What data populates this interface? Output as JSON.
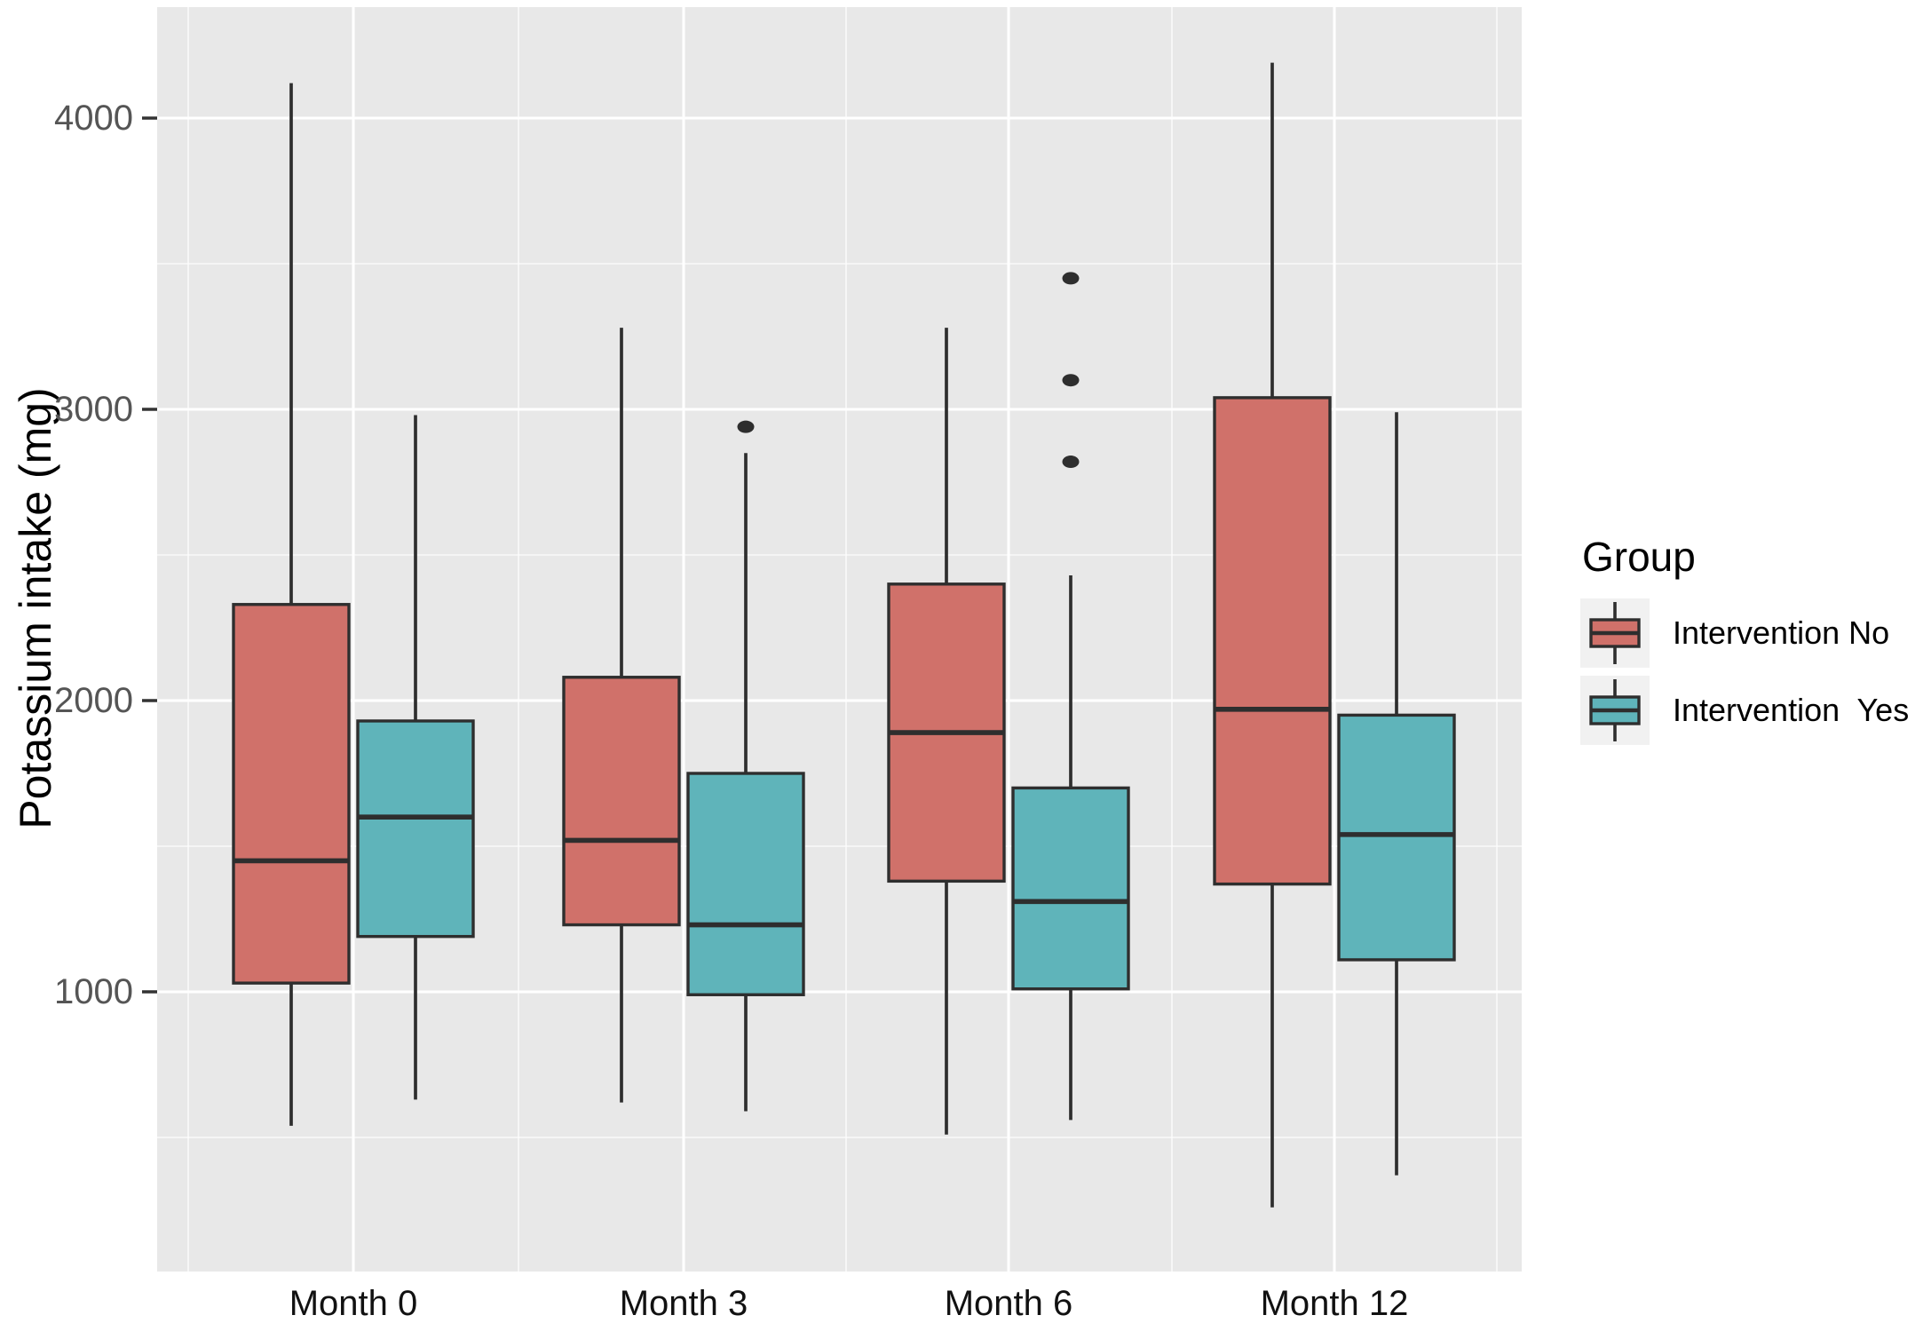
{
  "figure": {
    "background": "#ffffff"
  },
  "axes": {
    "y_title": "Potassium intake (mg)",
    "y_tick_labels": [
      "1000",
      "2000",
      "3000",
      "4000"
    ],
    "x_tick_labels": [
      "Month 0",
      "Month 3",
      "Month 6",
      "Month 12"
    ]
  },
  "legend": {
    "title": "Group",
    "entries": [
      {
        "label": "Intervention No",
        "color": "#d0716a"
      },
      {
        "label": "Intervention  Yes",
        "color": "#5fb4ba"
      }
    ]
  },
  "colors": {
    "panel_background": "#e8e8e8",
    "grid_major": "#ffffff",
    "grid_minor": "#ffffff",
    "box_outline": "#2e2e2e",
    "tick_mark": "#333333",
    "y_tick_text": "#555555",
    "x_tick_text": "#111111",
    "intervention_no_fill": "#d0716a",
    "intervention_yes_fill": "#5fb4ba",
    "legend_key_background": "#f1f1f1"
  },
  "chart_data": {
    "type": "boxplot",
    "title": "",
    "xlabel": "",
    "ylabel": "Potassium intake (mg)",
    "categories": [
      "Month 0",
      "Month 3",
      "Month 6",
      "Month 12"
    ],
    "y_ticks": [
      1000,
      2000,
      3000,
      4000
    ],
    "y_minor_gridlines": [
      500,
      1500,
      2500,
      3500
    ],
    "ylim": [
      40,
      4380
    ],
    "grid": true,
    "legend_title": "Group",
    "legend_position": "right",
    "series": [
      {
        "name": "Intervention No",
        "color": "#d0716a",
        "boxes": [
          {
            "category": "Month 0",
            "whisker_low": 540,
            "q1": 1030,
            "median": 1450,
            "q3": 2330,
            "whisker_high": 4120,
            "outliers": []
          },
          {
            "category": "Month 3",
            "whisker_low": 620,
            "q1": 1230,
            "median": 1520,
            "q3": 2080,
            "whisker_high": 3280,
            "outliers": []
          },
          {
            "category": "Month 6",
            "whisker_low": 510,
            "q1": 1380,
            "median": 1890,
            "q3": 2400,
            "whisker_high": 3280,
            "outliers": []
          },
          {
            "category": "Month 12",
            "whisker_low": 260,
            "q1": 1370,
            "median": 1970,
            "q3": 3040,
            "whisker_high": 4190,
            "outliers": []
          }
        ]
      },
      {
        "name": "Intervention Yes",
        "color": "#5fb4ba",
        "boxes": [
          {
            "category": "Month 0",
            "whisker_low": 630,
            "q1": 1190,
            "median": 1600,
            "q3": 1930,
            "whisker_high": 2980,
            "outliers": []
          },
          {
            "category": "Month 3",
            "whisker_low": 590,
            "q1": 990,
            "median": 1230,
            "q3": 1750,
            "whisker_high": 2850,
            "outliers": [
              2940
            ]
          },
          {
            "category": "Month 6",
            "whisker_low": 560,
            "q1": 1010,
            "median": 1310,
            "q3": 1700,
            "whisker_high": 2430,
            "outliers": [
              2820,
              3100,
              3450
            ]
          },
          {
            "category": "Month 12",
            "whisker_low": 370,
            "q1": 1110,
            "median": 1540,
            "q3": 1950,
            "whisker_high": 2990,
            "outliers": []
          }
        ]
      }
    ]
  }
}
